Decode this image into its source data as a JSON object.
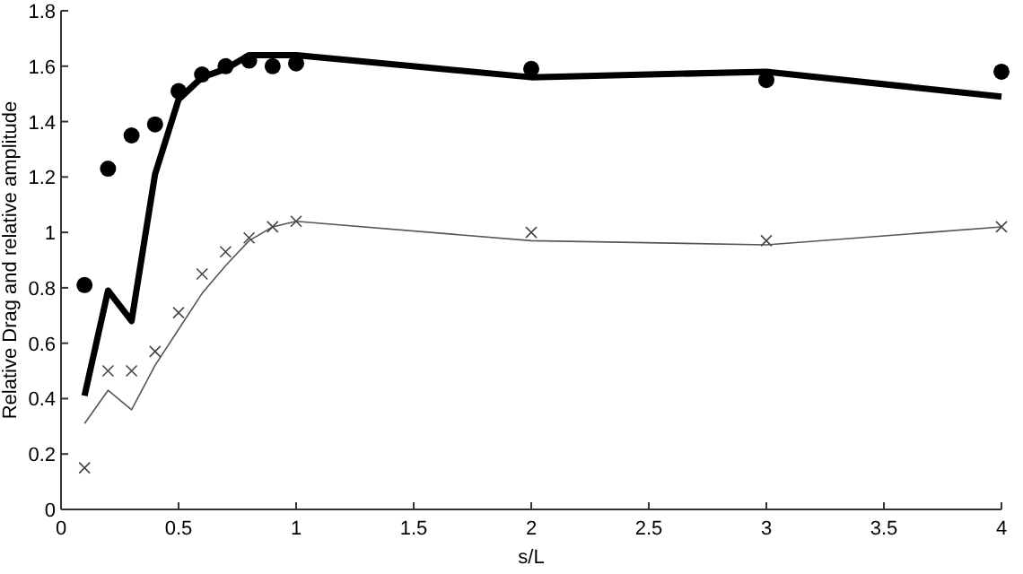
{
  "chart_data": {
    "type": "line",
    "xlabel": "s/L",
    "ylabel": "Relative Drag and relative amplitude",
    "x": [
      0.1,
      0.2,
      0.3,
      0.4,
      0.5,
      0.6,
      0.7,
      0.8,
      0.9,
      1,
      2,
      3,
      4
    ],
    "series": [
      {
        "color": "#000000",
        "marker": "none",
        "values": [
          0.41,
          0.79,
          0.68,
          1.21,
          1.48,
          1.56,
          1.59,
          1.64,
          1.64,
          1.64,
          1.56,
          1.58,
          1.49
        ]
      },
      {
        "type": "scatter",
        "color": "#000000",
        "marker": "circle",
        "values": [
          0.81,
          1.23,
          1.35,
          1.39,
          1.51,
          1.57,
          1.6,
          1.62,
          1.6,
          1.61,
          1.59,
          1.55,
          1.58
        ]
      },
      {
        "color": "#555555",
        "marker": "none",
        "values": [
          0.31,
          0.43,
          0.36,
          0.52,
          0.65,
          0.78,
          0.88,
          0.97,
          1.02,
          1.04,
          0.97,
          0.955,
          1.02
        ]
      },
      {
        "type": "scatter",
        "color": "#444444",
        "marker": "cross",
        "values": [
          0.15,
          0.5,
          0.5,
          0.57,
          0.71,
          0.85,
          0.93,
          0.98,
          1.02,
          1.04,
          1.0,
          0.97,
          1.02
        ]
      }
    ],
    "xlim": [
      0,
      4
    ],
    "xticks": [
      0,
      0.5,
      1,
      1.5,
      2,
      2.5,
      3,
      3.5,
      4
    ],
    "ylim": [
      0,
      1.8
    ],
    "yticks": [
      0,
      0.2,
      0.4,
      0.6,
      0.8,
      1,
      1.2,
      1.4,
      1.6,
      1.8
    ],
    "grid": false
  }
}
